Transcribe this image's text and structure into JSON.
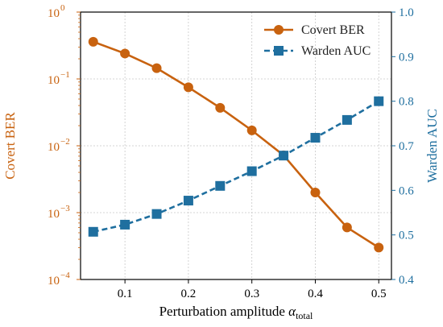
{
  "chart_data": {
    "type": "line",
    "x": [
      0.05,
      0.1,
      0.15,
      0.2,
      0.25,
      0.3,
      0.35,
      0.4,
      0.45,
      0.5
    ],
    "xlim": [
      0.03,
      0.52
    ],
    "x_ticks": [
      "0.1",
      "0.2",
      "0.3",
      "0.4",
      "0.5"
    ],
    "x_tick_values": [
      0.1,
      0.2,
      0.3,
      0.4,
      0.5
    ],
    "xlabel": "Perturbation amplitude",
    "xlabel_symbol": "α",
    "xlabel_subscript": "total",
    "grid": true,
    "legend_position": "top-right",
    "left_axis": {
      "label": "Covert BER",
      "scale": "log",
      "ylim": [
        0.0001,
        1
      ],
      "ticks": [
        {
          "value": 0.0001,
          "base": "10",
          "exp": "−4"
        },
        {
          "value": 0.001,
          "base": "10",
          "exp": "−3"
        },
        {
          "value": 0.01,
          "base": "10",
          "exp": "−2"
        },
        {
          "value": 0.1,
          "base": "10",
          "exp": "−1"
        },
        {
          "value": 1,
          "base": "10",
          "exp": "0"
        }
      ],
      "color": "#c8620f"
    },
    "right_axis": {
      "label": "Warden AUC",
      "scale": "linear",
      "ylim": [
        0.4,
        1.0
      ],
      "ticks": [
        "0.4",
        "0.5",
        "0.6",
        "0.7",
        "0.8",
        "0.9",
        "1.0"
      ],
      "tick_values": [
        0.4,
        0.5,
        0.6,
        0.7,
        0.8,
        0.9,
        1.0
      ],
      "color": "#1f6f9f"
    },
    "series": [
      {
        "name": "Covert BER",
        "axis": "left",
        "marker": "circle",
        "line_style": "solid",
        "color": "#c8620f",
        "values": [
          0.36,
          0.24,
          0.145,
          0.075,
          0.037,
          0.017,
          0.0072,
          0.002,
          0.0006,
          0.0003
        ]
      },
      {
        "name": "Warden AUC",
        "axis": "right",
        "marker": "square",
        "line_style": "dashed",
        "color": "#1f6f9f",
        "values": [
          0.507,
          0.523,
          0.547,
          0.577,
          0.61,
          0.643,
          0.678,
          0.718,
          0.758,
          0.8
        ]
      }
    ]
  }
}
